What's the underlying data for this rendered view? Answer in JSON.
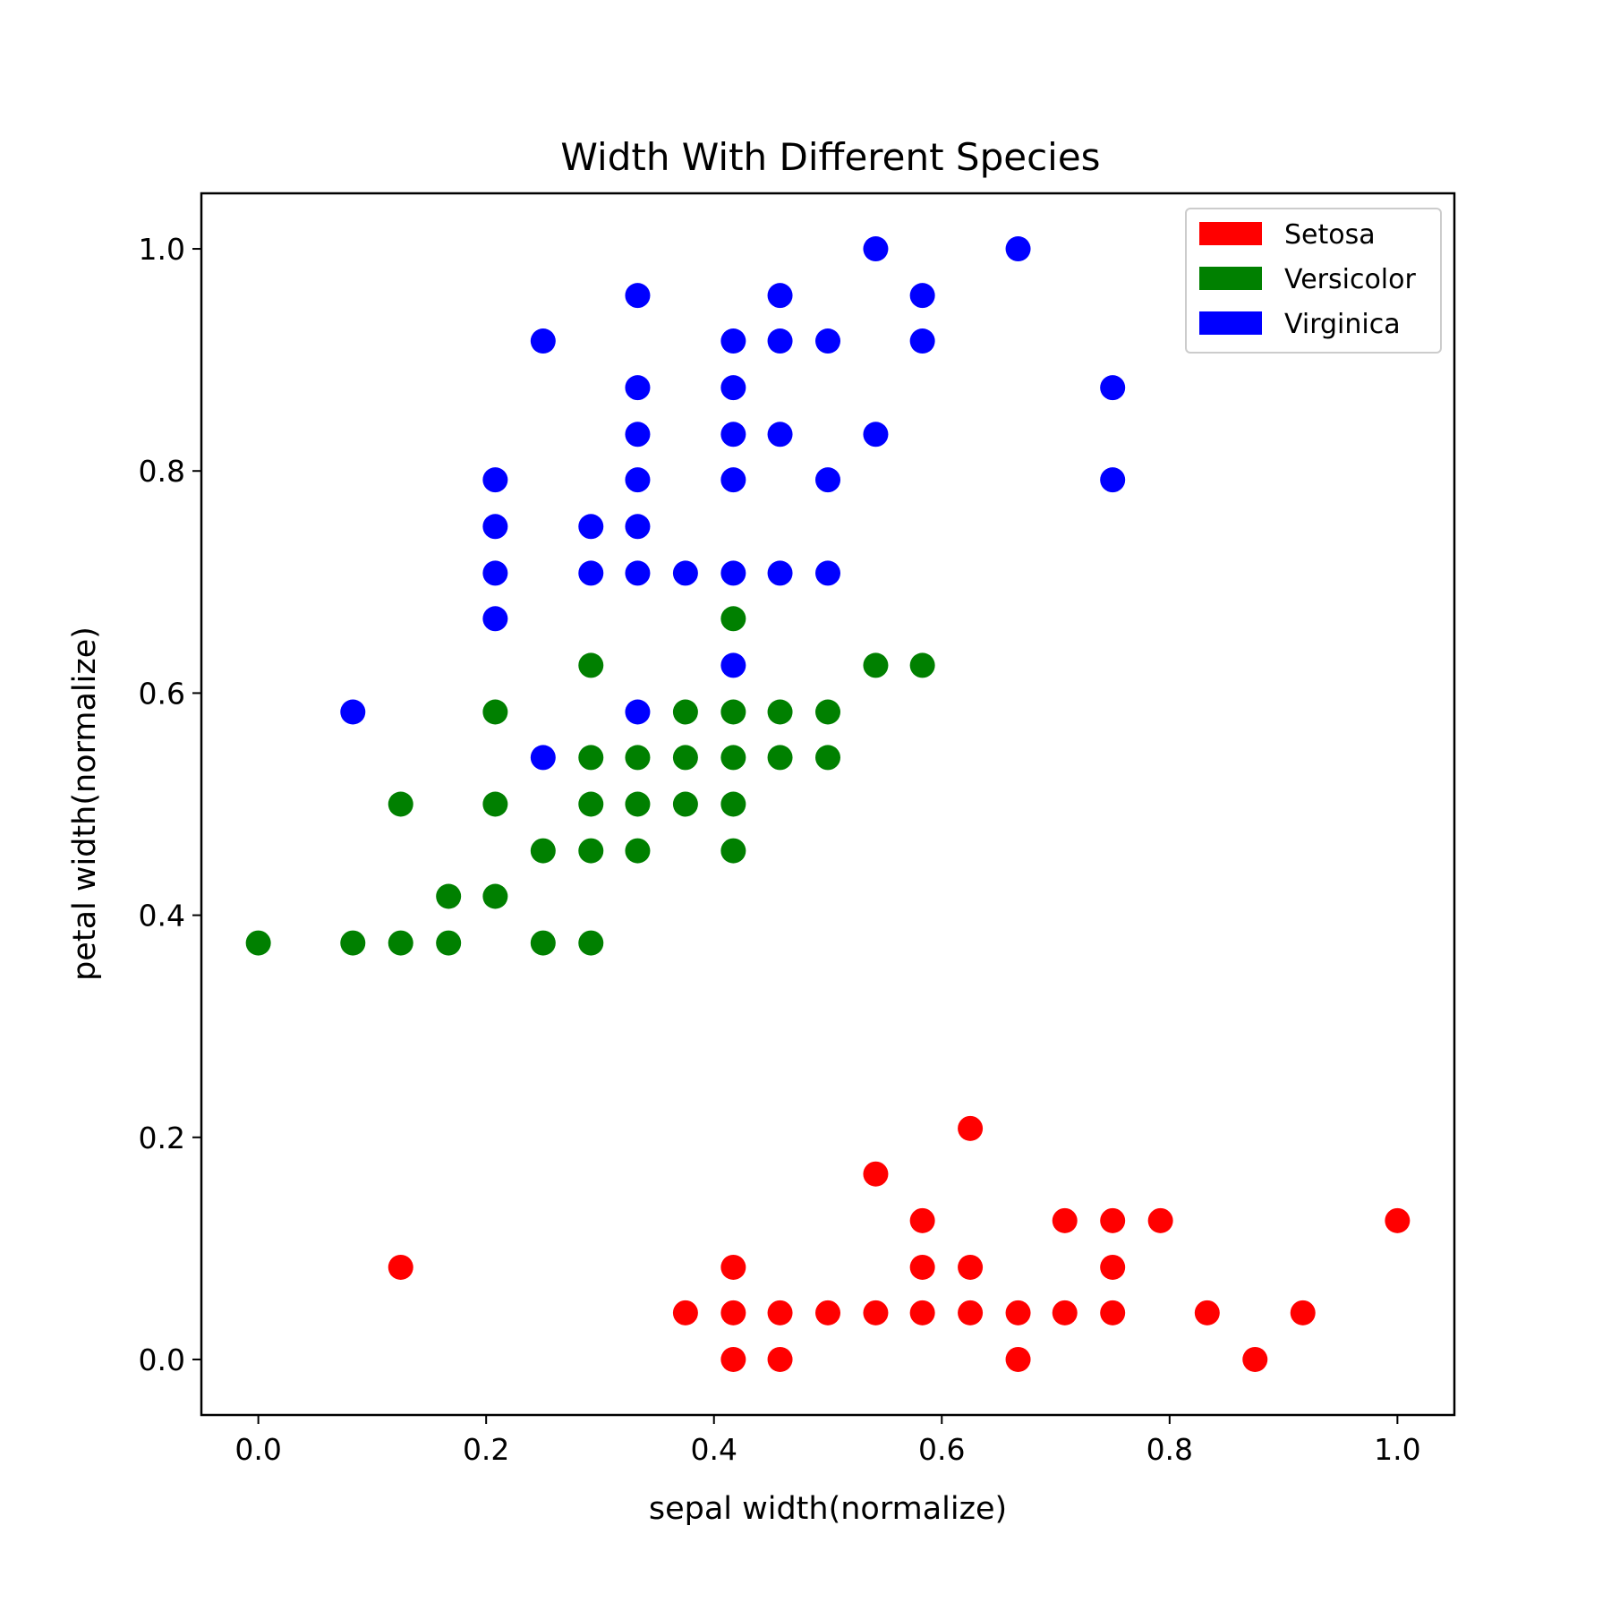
{
  "chart_data": {
    "type": "scatter",
    "title": "Width With Different Species",
    "xlabel": "sepal width(normalize)",
    "ylabel": "petal width(normalize)",
    "xlim": [
      -0.05,
      1.05
    ],
    "ylim": [
      -0.05,
      1.05
    ],
    "xticks": [
      "0.0",
      "0.2",
      "0.4",
      "0.6",
      "0.8",
      "1.0"
    ],
    "yticks": [
      "0.0",
      "0.2",
      "0.4",
      "0.6",
      "0.8",
      "1.0"
    ],
    "grid": false,
    "legend_position": "top-right",
    "series": [
      {
        "name": "Setosa",
        "color": "#ff0000",
        "points": [
          [
            0.125,
            0.083
          ],
          [
            0.375,
            0.042
          ],
          [
            0.417,
            0.083
          ],
          [
            0.417,
            0.042
          ],
          [
            0.417,
            0.0
          ],
          [
            0.458,
            0.042
          ],
          [
            0.458,
            0.0
          ],
          [
            0.5,
            0.042
          ],
          [
            0.542,
            0.167
          ],
          [
            0.542,
            0.042
          ],
          [
            0.583,
            0.125
          ],
          [
            0.583,
            0.083
          ],
          [
            0.583,
            0.042
          ],
          [
            0.625,
            0.208
          ],
          [
            0.625,
            0.083
          ],
          [
            0.625,
            0.042
          ],
          [
            0.667,
            0.042
          ],
          [
            0.667,
            0.0
          ],
          [
            0.708,
            0.125
          ],
          [
            0.708,
            0.042
          ],
          [
            0.75,
            0.125
          ],
          [
            0.75,
            0.083
          ],
          [
            0.75,
            0.042
          ],
          [
            0.792,
            0.125
          ],
          [
            0.833,
            0.042
          ],
          [
            0.875,
            0.0
          ],
          [
            0.917,
            0.042
          ],
          [
            1.0,
            0.125
          ]
        ]
      },
      {
        "name": "Versicolor",
        "color": "#008000",
        "points": [
          [
            0.0,
            0.375
          ],
          [
            0.083,
            0.375
          ],
          [
            0.125,
            0.5
          ],
          [
            0.125,
            0.375
          ],
          [
            0.167,
            0.417
          ],
          [
            0.167,
            0.375
          ],
          [
            0.208,
            0.583
          ],
          [
            0.208,
            0.5
          ],
          [
            0.208,
            0.417
          ],
          [
            0.25,
            0.458
          ],
          [
            0.25,
            0.375
          ],
          [
            0.292,
            0.625
          ],
          [
            0.292,
            0.542
          ],
          [
            0.292,
            0.5
          ],
          [
            0.292,
            0.458
          ],
          [
            0.292,
            0.375
          ],
          [
            0.333,
            0.542
          ],
          [
            0.333,
            0.5
          ],
          [
            0.333,
            0.458
          ],
          [
            0.375,
            0.583
          ],
          [
            0.375,
            0.542
          ],
          [
            0.375,
            0.5
          ],
          [
            0.417,
            0.667
          ],
          [
            0.417,
            0.583
          ],
          [
            0.417,
            0.542
          ],
          [
            0.417,
            0.5
          ],
          [
            0.417,
            0.458
          ],
          [
            0.458,
            0.583
          ],
          [
            0.458,
            0.542
          ],
          [
            0.5,
            0.583
          ],
          [
            0.5,
            0.542
          ],
          [
            0.542,
            0.625
          ],
          [
            0.583,
            0.625
          ]
        ]
      },
      {
        "name": "Virginica",
        "color": "#0000ff",
        "points": [
          [
            0.083,
            0.583
          ],
          [
            0.208,
            0.792
          ],
          [
            0.208,
            0.75
          ],
          [
            0.208,
            0.708
          ],
          [
            0.208,
            0.667
          ],
          [
            0.25,
            0.917
          ],
          [
            0.25,
            0.542
          ],
          [
            0.292,
            0.75
          ],
          [
            0.292,
            0.708
          ],
          [
            0.333,
            0.958
          ],
          [
            0.333,
            0.875
          ],
          [
            0.333,
            0.833
          ],
          [
            0.333,
            0.792
          ],
          [
            0.333,
            0.75
          ],
          [
            0.333,
            0.708
          ],
          [
            0.333,
            0.583
          ],
          [
            0.375,
            0.708
          ],
          [
            0.417,
            0.917
          ],
          [
            0.417,
            0.875
          ],
          [
            0.417,
            0.833
          ],
          [
            0.417,
            0.792
          ],
          [
            0.417,
            0.708
          ],
          [
            0.417,
            0.625
          ],
          [
            0.458,
            0.958
          ],
          [
            0.458,
            0.917
          ],
          [
            0.458,
            0.833
          ],
          [
            0.458,
            0.708
          ],
          [
            0.5,
            0.917
          ],
          [
            0.5,
            0.792
          ],
          [
            0.5,
            0.708
          ],
          [
            0.542,
            1.0
          ],
          [
            0.542,
            0.833
          ],
          [
            0.583,
            0.958
          ],
          [
            0.583,
            0.917
          ],
          [
            0.667,
            1.0
          ],
          [
            0.75,
            0.875
          ],
          [
            0.75,
            0.792
          ]
        ]
      }
    ]
  }
}
